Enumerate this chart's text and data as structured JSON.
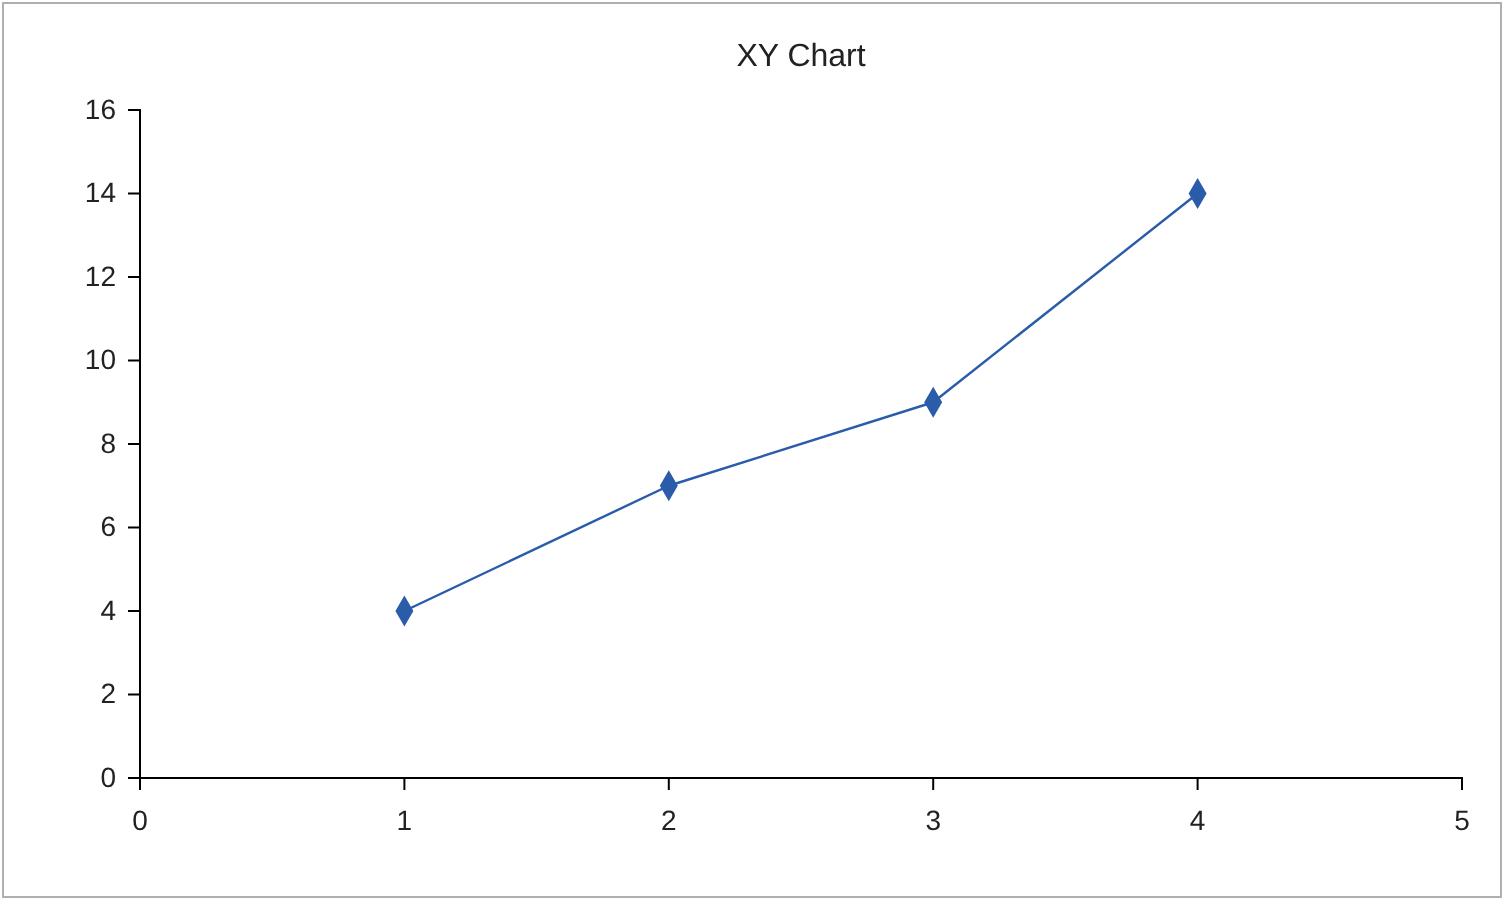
{
  "chart_data": {
    "type": "line",
    "title": "XY Chart",
    "x": [
      1,
      2,
      3,
      4
    ],
    "series": [
      {
        "color": "#2a5caa",
        "values": [
          4,
          7,
          9,
          14
        ]
      }
    ],
    "xlim": [
      0,
      5
    ],
    "xticks": [
      0,
      1,
      2,
      3,
      4,
      5
    ],
    "ylim": [
      0,
      16
    ],
    "yticks": [
      0,
      2,
      4,
      6,
      8,
      10,
      12,
      14,
      16
    ],
    "grid": false,
    "marker": "diamond",
    "line_style": "solid"
  }
}
